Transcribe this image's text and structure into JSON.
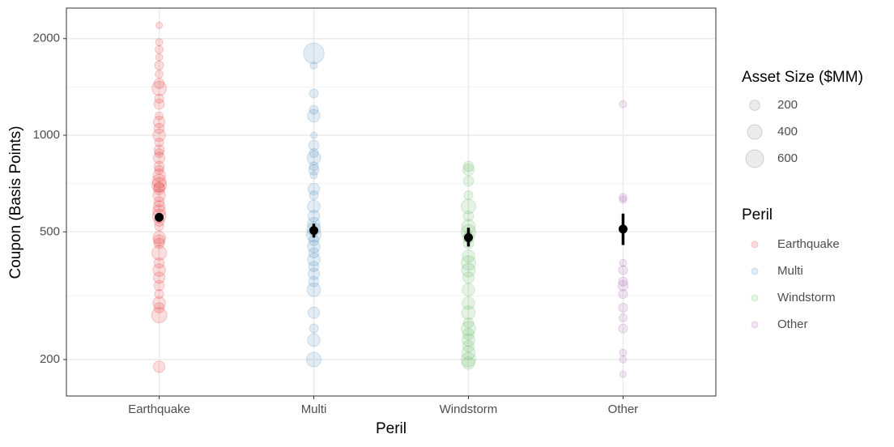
{
  "chart_data": {
    "type": "strip",
    "x_label": "Peril",
    "y_label": "Coupon (Basis Points)",
    "categories": [
      "Earthquake",
      "Multi",
      "Windstorm",
      "Other"
    ],
    "log_y": true,
    "grid": true,
    "ylim": [
      154,
      2490
    ],
    "yticks": [
      200,
      500,
      1000,
      2000
    ],
    "minor_yticks": [
      316,
      707,
      1414
    ],
    "series": [
      {
        "name": "Earthquake",
        "color": "#e41a1c",
        "values": [
          2200,
          1950,
          1850,
          1750,
          1650,
          1550,
          1450,
          1400,
          1300,
          1250,
          1150,
          1100,
          1050,
          1000,
          950,
          900,
          880,
          850,
          800,
          780,
          750,
          720,
          700,
          690,
          680,
          650,
          620,
          600,
          580,
          560,
          540,
          520,
          480,
          470,
          460,
          430,
          400,
          380,
          360,
          340,
          320,
          300,
          290,
          275,
          190
        ],
        "sizes": [
          80,
          100,
          120,
          100,
          150,
          120,
          200,
          400,
          150,
          200,
          120,
          250,
          200,
          300,
          150,
          200,
          150,
          250,
          200,
          150,
          300,
          350,
          400,
          200,
          250,
          300,
          200,
          250,
          300,
          350,
          200,
          150,
          300,
          250,
          200,
          400,
          200,
          300,
          250,
          200,
          150,
          300,
          200,
          450,
          250
        ]
      },
      {
        "name": "Multi",
        "color": "#377eb8",
        "values": [
          1800,
          1650,
          1350,
          1200,
          1150,
          1000,
          930,
          880,
          850,
          800,
          780,
          750,
          680,
          650,
          600,
          560,
          530,
          510,
          490,
          470,
          450,
          430,
          410,
          390,
          370,
          350,
          330,
          280,
          250,
          230,
          200
        ],
        "sizes": [
          800,
          100,
          150,
          150,
          300,
          80,
          200,
          150,
          350,
          150,
          200,
          100,
          250,
          150,
          300,
          250,
          300,
          350,
          400,
          200,
          300,
          200,
          300,
          200,
          250,
          200,
          350,
          250,
          150,
          300,
          400
        ]
      },
      {
        "name": "Windstorm",
        "color": "#4daf4a",
        "values": [
          800,
          780,
          720,
          650,
          600,
          560,
          520,
          500,
          480,
          460,
          420,
          400,
          380,
          360,
          330,
          300,
          280,
          260,
          250,
          240,
          230,
          220,
          210,
          200,
          195
        ],
        "sizes": [
          200,
          250,
          200,
          150,
          400,
          200,
          350,
          400,
          250,
          200,
          300,
          400,
          350,
          250,
          300,
          300,
          350,
          200,
          400,
          250,
          300,
          250,
          350,
          400,
          300
        ]
      },
      {
        "name": "Other",
        "color": "#984ea3",
        "values": [
          1250,
          640,
          630,
          400,
          380,
          350,
          340,
          320,
          290,
          270,
          250,
          210,
          200,
          180
        ],
        "sizes": [
          100,
          120,
          100,
          100,
          150,
          150,
          200,
          150,
          150,
          120,
          150,
          100,
          100,
          80
        ]
      }
    ],
    "means": {
      "values": [
        555,
        505,
        480,
        510
      ],
      "lower": [
        540,
        480,
        450,
        455
      ],
      "upper": [
        570,
        530,
        515,
        570
      ]
    },
    "size_legend_title": "Asset Size ($MM)",
    "size_legend": [
      200,
      400,
      600
    ],
    "color_legend_title": "Peril"
  }
}
